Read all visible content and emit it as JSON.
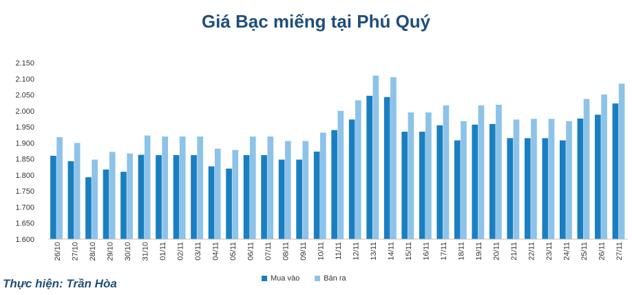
{
  "chart_data": {
    "type": "bar",
    "title": "Giá Bạc miếng tại Phú Quý",
    "credit": "Thực hiện: Trần Hòa",
    "ylim": [
      1600,
      2150
    ],
    "yticks": [
      1600,
      1650,
      1700,
      1750,
      1800,
      1850,
      1900,
      1950,
      2000,
      2050,
      2100,
      2150
    ],
    "ytick_labels": [
      "1.600",
      "1.650",
      "1.700",
      "1.750",
      "1.800",
      "1.850",
      "1.900",
      "1.950",
      "2.000",
      "2.050",
      "2.100",
      "2.150"
    ],
    "categories": [
      "26/10",
      "27/10",
      "28/10",
      "29/10",
      "30/10",
      "31/10",
      "01/11",
      "02/11",
      "03/11",
      "04/11",
      "05/11",
      "06/11",
      "07/11",
      "08/11",
      "09/11",
      "10/11",
      "11/11",
      "12/11",
      "13/11",
      "14/11",
      "15/11",
      "16/11",
      "17/11",
      "18/11",
      "19/11",
      "20/11",
      "21/11",
      "22/11",
      "23/11",
      "24/11",
      "25/11",
      "26/11",
      "27/11"
    ],
    "series": [
      {
        "name": "Mua vào",
        "color": "#1a7fc1",
        "values": [
          1860,
          1843,
          1793,
          1817,
          1810,
          1863,
          1862,
          1862,
          1862,
          1827,
          1820,
          1862,
          1862,
          1848,
          1848,
          1873,
          1940,
          1973,
          2047,
          2043,
          1935,
          1935,
          1955,
          1908,
          1957,
          1959,
          1915,
          1915,
          1915,
          1908,
          1976,
          1988,
          2023
        ]
      },
      {
        "name": "Bán ra",
        "color": "#8dc3e8",
        "values": [
          1918,
          1900,
          1848,
          1872,
          1867,
          1923,
          1920,
          1920,
          1920,
          1882,
          1878,
          1920,
          1920,
          1906,
          1906,
          1932,
          2000,
          2033,
          2110,
          2105,
          1995,
          1995,
          2017,
          1968,
          2017,
          2019,
          1973,
          1975,
          1975,
          1968,
          2037,
          2051,
          2085
        ]
      }
    ],
    "grid": false,
    "legend_position": "bottom"
  }
}
